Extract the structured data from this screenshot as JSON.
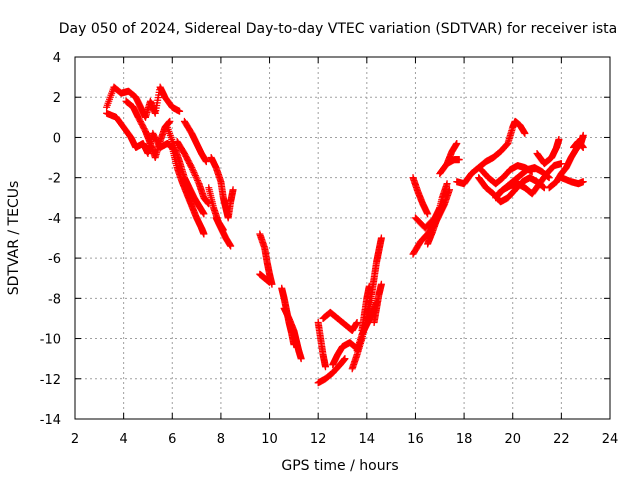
{
  "chart_data": {
    "type": "scatter",
    "title": "Day 050 of 2024, Sidereal Day-to-day VTEC variation (SDTVAR) for receiver ista",
    "xlabel": "GPS time / hours",
    "ylabel": "SDTVAR / TECUs",
    "xlim": [
      2,
      24
    ],
    "ylim": [
      -14,
      4
    ],
    "xticks": [
      2,
      4,
      6,
      8,
      10,
      12,
      14,
      16,
      18,
      20,
      22,
      24
    ],
    "yticks": [
      -14,
      -12,
      -10,
      -8,
      -6,
      -4,
      -2,
      0,
      2,
      4
    ],
    "xtick_labels": [
      "2",
      "4",
      "6",
      "8",
      "10",
      "12",
      "14",
      "16",
      "18",
      "20",
      "22",
      "24"
    ],
    "ytick_labels": [
      "-14",
      "-12",
      "-10",
      "-8",
      "-6",
      "-4",
      "-2",
      "0",
      "2",
      "4"
    ],
    "grid": true,
    "marker": "+",
    "series": [
      {
        "name": "SDTVAR",
        "color": "#ff0000",
        "tracks": [
          [
            [
              3.3,
              1.5
            ],
            [
              3.6,
              2.5
            ],
            [
              3.9,
              2.2
            ],
            [
              4.2,
              2.3
            ],
            [
              4.5,
              2.0
            ],
            [
              4.7,
              1.5
            ],
            [
              4.9,
              1.0
            ],
            [
              5.1,
              1.8
            ],
            [
              5.3,
              1.2
            ],
            [
              5.5,
              2.5
            ],
            [
              5.7,
              2.0
            ],
            [
              6.0,
              1.5
            ],
            [
              6.3,
              1.3
            ]
          ],
          [
            [
              3.3,
              1.2
            ],
            [
              3.7,
              1.0
            ],
            [
              4.0,
              0.5
            ],
            [
              4.3,
              0.0
            ],
            [
              4.5,
              -0.5
            ],
            [
              4.8,
              -0.3
            ],
            [
              5.0,
              -0.8
            ],
            [
              5.2,
              0.2
            ],
            [
              5.5,
              -0.5
            ],
            [
              5.8,
              -0.3
            ],
            [
              6.0,
              -0.5
            ]
          ],
          [
            [
              4.1,
              1.8
            ],
            [
              4.4,
              1.5
            ],
            [
              4.6,
              1.0
            ],
            [
              4.9,
              0.3
            ],
            [
              5.1,
              -0.3
            ],
            [
              5.3,
              -1.0
            ],
            [
              5.5,
              -0.2
            ],
            [
              5.7,
              0.5
            ],
            [
              5.9,
              0.8
            ]
          ],
          [
            [
              5.8,
              0.5
            ],
            [
              6.1,
              -0.5
            ],
            [
              6.3,
              -1.2
            ],
            [
              6.5,
              -2.0
            ],
            [
              6.7,
              -2.5
            ],
            [
              6.9,
              -3.0
            ],
            [
              7.1,
              -3.4
            ],
            [
              7.3,
              -3.8
            ]
          ],
          [
            [
              6.0,
              -0.5
            ],
            [
              6.2,
              -1.5
            ],
            [
              6.4,
              -2.2
            ],
            [
              6.6,
              -2.8
            ],
            [
              6.8,
              -3.4
            ],
            [
              7.0,
              -4.0
            ],
            [
              7.2,
              -4.5
            ],
            [
              7.3,
              -4.8
            ]
          ],
          [
            [
              6.5,
              0.8
            ],
            [
              6.8,
              0.2
            ],
            [
              7.0,
              -0.3
            ],
            [
              7.2,
              -0.8
            ],
            [
              7.4,
              -1.2
            ]
          ],
          [
            [
              6.2,
              -0.2
            ],
            [
              6.5,
              -0.8
            ],
            [
              6.8,
              -1.5
            ],
            [
              7.1,
              -2.3
            ],
            [
              7.3,
              -3.0
            ],
            [
              7.5,
              -3.3
            ]
          ],
          [
            [
              7.6,
              -1.0
            ],
            [
              7.8,
              -1.5
            ],
            [
              8.0,
              -2.2
            ],
            [
              8.1,
              -3.0
            ],
            [
              8.2,
              -3.5
            ],
            [
              8.3,
              -4.0
            ],
            [
              8.4,
              -3.2
            ],
            [
              8.5,
              -2.6
            ]
          ],
          [
            [
              7.8,
              -4.0
            ],
            [
              8.0,
              -4.5
            ],
            [
              8.2,
              -5.0
            ],
            [
              8.4,
              -5.4
            ]
          ],
          [
            [
              7.5,
              -2.5
            ],
            [
              7.7,
              -3.5
            ],
            [
              7.9,
              -4.2
            ],
            [
              8.1,
              -4.6
            ]
          ],
          [
            [
              9.6,
              -4.8
            ],
            [
              9.8,
              -5.5
            ],
            [
              9.9,
              -6.2
            ],
            [
              10.0,
              -6.8
            ],
            [
              10.1,
              -7.3
            ]
          ],
          [
            [
              9.6,
              -6.8
            ],
            [
              9.8,
              -7.0
            ],
            [
              10.0,
              -7.2
            ]
          ],
          [
            [
              10.5,
              -7.5
            ],
            [
              10.6,
              -8.0
            ],
            [
              10.7,
              -8.6
            ],
            [
              10.8,
              -9.2
            ],
            [
              10.9,
              -9.7
            ],
            [
              11.0,
              -10.3
            ]
          ],
          [
            [
              10.6,
              -8.5
            ],
            [
              10.8,
              -9.0
            ],
            [
              11.0,
              -9.6
            ],
            [
              11.1,
              -10.1
            ],
            [
              11.2,
              -10.6
            ],
            [
              11.3,
              -11.0
            ]
          ],
          [
            [
              12.0,
              -12.2
            ],
            [
              12.3,
              -12.0
            ],
            [
              12.6,
              -11.7
            ],
            [
              12.9,
              -11.3
            ],
            [
              13.1,
              -11.0
            ]
          ],
          [
            [
              12.2,
              -9.0
            ],
            [
              12.5,
              -8.7
            ],
            [
              12.8,
              -9.0
            ],
            [
              13.1,
              -9.3
            ],
            [
              13.4,
              -9.6
            ],
            [
              13.6,
              -9.2
            ]
          ],
          [
            [
              12.0,
              -9.2
            ],
            [
              12.1,
              -10.0
            ],
            [
              12.2,
              -10.8
            ],
            [
              12.3,
              -11.4
            ]
          ],
          [
            [
              12.6,
              -11.3
            ],
            [
              12.8,
              -10.8
            ],
            [
              13.0,
              -10.4
            ],
            [
              13.3,
              -10.2
            ],
            [
              13.6,
              -10.5
            ]
          ],
          [
            [
              13.4,
              -11.5
            ],
            [
              13.6,
              -10.8
            ],
            [
              13.8,
              -10.0
            ],
            [
              14.0,
              -9.0
            ],
            [
              14.2,
              -8.0
            ]
          ],
          [
            [
              13.6,
              -10.6
            ],
            [
              13.8,
              -9.8
            ],
            [
              14.0,
              -9.3
            ],
            [
              14.2,
              -8.8
            ],
            [
              14.4,
              -8.2
            ]
          ],
          [
            [
              13.8,
              -9.6
            ],
            [
              13.9,
              -8.8
            ],
            [
              14.0,
              -8.0
            ],
            [
              14.1,
              -7.4
            ]
          ],
          [
            [
              14.0,
              -8.8
            ],
            [
              14.2,
              -7.8
            ],
            [
              14.3,
              -7.0
            ],
            [
              14.4,
              -6.2
            ],
            [
              14.5,
              -5.6
            ],
            [
              14.6,
              -5.0
            ]
          ],
          [
            [
              14.3,
              -9.2
            ],
            [
              14.4,
              -8.5
            ],
            [
              14.5,
              -7.8
            ],
            [
              14.6,
              -7.3
            ]
          ],
          [
            [
              15.9,
              -5.8
            ],
            [
              16.2,
              -5.2
            ],
            [
              16.5,
              -4.8
            ],
            [
              16.8,
              -4.3
            ],
            [
              17.0,
              -3.8
            ],
            [
              17.2,
              -3.3
            ],
            [
              17.4,
              -2.6
            ]
          ],
          [
            [
              16.0,
              -4.0
            ],
            [
              16.4,
              -4.5
            ],
            [
              16.8,
              -4.0
            ],
            [
              17.0,
              -3.5
            ]
          ],
          [
            [
              15.9,
              -2.0
            ],
            [
              16.1,
              -2.7
            ],
            [
              16.3,
              -3.3
            ],
            [
              16.5,
              -3.8
            ]
          ],
          [
            [
              16.5,
              -5.3
            ],
            [
              16.7,
              -4.7
            ],
            [
              16.9,
              -4.0
            ],
            [
              17.1,
              -3.0
            ],
            [
              17.3,
              -2.3
            ]
          ],
          [
            [
              17.0,
              -1.8
            ],
            [
              17.3,
              -1.3
            ],
            [
              17.6,
              -1.1
            ],
            [
              17.8,
              -1.1
            ]
          ],
          [
            [
              17.3,
              -1.3
            ],
            [
              17.5,
              -0.7
            ],
            [
              17.7,
              -0.3
            ]
          ],
          [
            [
              17.7,
              -2.2
            ],
            [
              18.0,
              -2.3
            ],
            [
              18.3,
              -1.8
            ],
            [
              18.6,
              -1.5
            ],
            [
              18.9,
              -1.2
            ],
            [
              19.2,
              -1.0
            ],
            [
              19.5,
              -0.7
            ],
            [
              19.8,
              -0.3
            ],
            [
              20.0,
              0.5
            ],
            [
              20.1,
              0.8
            ],
            [
              20.3,
              0.6
            ],
            [
              20.5,
              0.2
            ]
          ],
          [
            [
              18.6,
              -2.0
            ],
            [
              18.9,
              -2.5
            ],
            [
              19.2,
              -2.8
            ],
            [
              19.5,
              -3.2
            ],
            [
              19.8,
              -3.0
            ],
            [
              20.1,
              -2.6
            ],
            [
              20.4,
              -2.2
            ],
            [
              20.7,
              -2.0
            ],
            [
              21.0,
              -2.2
            ],
            [
              21.3,
              -2.5
            ]
          ],
          [
            [
              18.7,
              -1.6
            ],
            [
              19.0,
              -2.0
            ],
            [
              19.3,
              -2.3
            ],
            [
              19.6,
              -2.0
            ],
            [
              19.9,
              -1.6
            ],
            [
              20.2,
              -1.4
            ],
            [
              20.5,
              -1.5
            ],
            [
              20.8,
              -1.7
            ]
          ],
          [
            [
              19.4,
              -2.8
            ],
            [
              19.7,
              -2.5
            ],
            [
              20.0,
              -2.2
            ],
            [
              20.3,
              -1.9
            ],
            [
              20.6,
              -1.6
            ],
            [
              20.9,
              -1.5
            ],
            [
              21.2,
              -1.7
            ],
            [
              21.5,
              -2.0
            ]
          ],
          [
            [
              19.3,
              -3.0
            ],
            [
              19.6,
              -2.6
            ],
            [
              19.9,
              -2.4
            ],
            [
              20.2,
              -2.3
            ],
            [
              20.5,
              -2.5
            ],
            [
              20.8,
              -2.8
            ],
            [
              21.1,
              -2.3
            ],
            [
              21.4,
              -1.8
            ],
            [
              21.7,
              -1.4
            ],
            [
              22.0,
              -1.3
            ]
          ],
          [
            [
              21.0,
              -0.8
            ],
            [
              21.3,
              -1.3
            ],
            [
              21.6,
              -1.0
            ],
            [
              21.8,
              -0.5
            ],
            [
              21.9,
              -0.1
            ]
          ],
          [
            [
              21.5,
              -2.5
            ],
            [
              21.8,
              -2.2
            ],
            [
              22.0,
              -1.8
            ],
            [
              22.2,
              -1.5
            ],
            [
              22.4,
              -1.0
            ],
            [
              22.6,
              -0.6
            ],
            [
              22.8,
              -0.3
            ],
            [
              22.9,
              0.1
            ]
          ],
          [
            [
              22.0,
              -2.0
            ],
            [
              22.4,
              -2.2
            ],
            [
              22.7,
              -2.3
            ],
            [
              22.9,
              -2.2
            ]
          ],
          [
            [
              22.5,
              -0.5
            ],
            [
              22.7,
              -0.2
            ],
            [
              22.9,
              -0.5
            ]
          ]
        ]
      }
    ]
  }
}
